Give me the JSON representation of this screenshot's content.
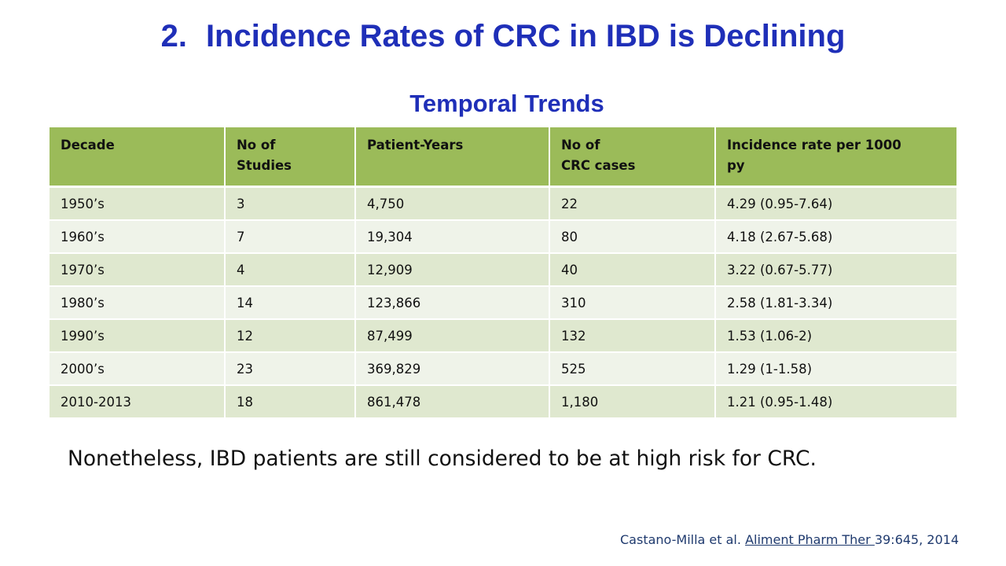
{
  "slide": {
    "title_number": "2.",
    "title_text": "Incidence Rates of CRC in IBD is Declining",
    "subtitle": "Temporal Trends"
  },
  "table": {
    "headers": [
      {
        "line1": "Decade",
        "line2": ""
      },
      {
        "line1": "No of",
        "line2": "Studies"
      },
      {
        "line1": "Patient-Years",
        "line2": ""
      },
      {
        "line1": "No of",
        "line2": "CRC cases"
      },
      {
        "line1": "Incidence rate per 1000",
        "line2": "py"
      }
    ],
    "rows": [
      [
        "1950’s",
        "3",
        "4,750",
        "22",
        "4.29 (0.95-7.64)"
      ],
      [
        "1960’s",
        "7",
        "19,304",
        "80",
        "4.18 (2.67-5.68)"
      ],
      [
        "1970’s",
        "4",
        "12,909",
        "40",
        "3.22 (0.67-5.77)"
      ],
      [
        "1980’s",
        "14",
        "123,866",
        "310",
        "2.58 (1.81-3.34)"
      ],
      [
        "1990’s",
        "12",
        "87,499",
        "132",
        "1.53 (1.06-2)"
      ],
      [
        "2000’s",
        "23",
        "369,829",
        "525",
        "1.29 (1-1.58)"
      ],
      [
        "2010-2013",
        "18",
        "861,478",
        "1,180",
        "1.21 (0.95-1.48)"
      ]
    ]
  },
  "note": "Nonetheless, IBD patients are still considered to be at high risk for CRC.",
  "citation": {
    "authors": "Castano-Milla et al.",
    "journal": "Aliment Pharm Ther ",
    "volume_pages": "39:645, 2014"
  },
  "colors": {
    "title": "#1f2fb8",
    "header_fill": "#9bbb59",
    "row_odd": "#dfe8cf",
    "row_even": "#eff3e9"
  }
}
